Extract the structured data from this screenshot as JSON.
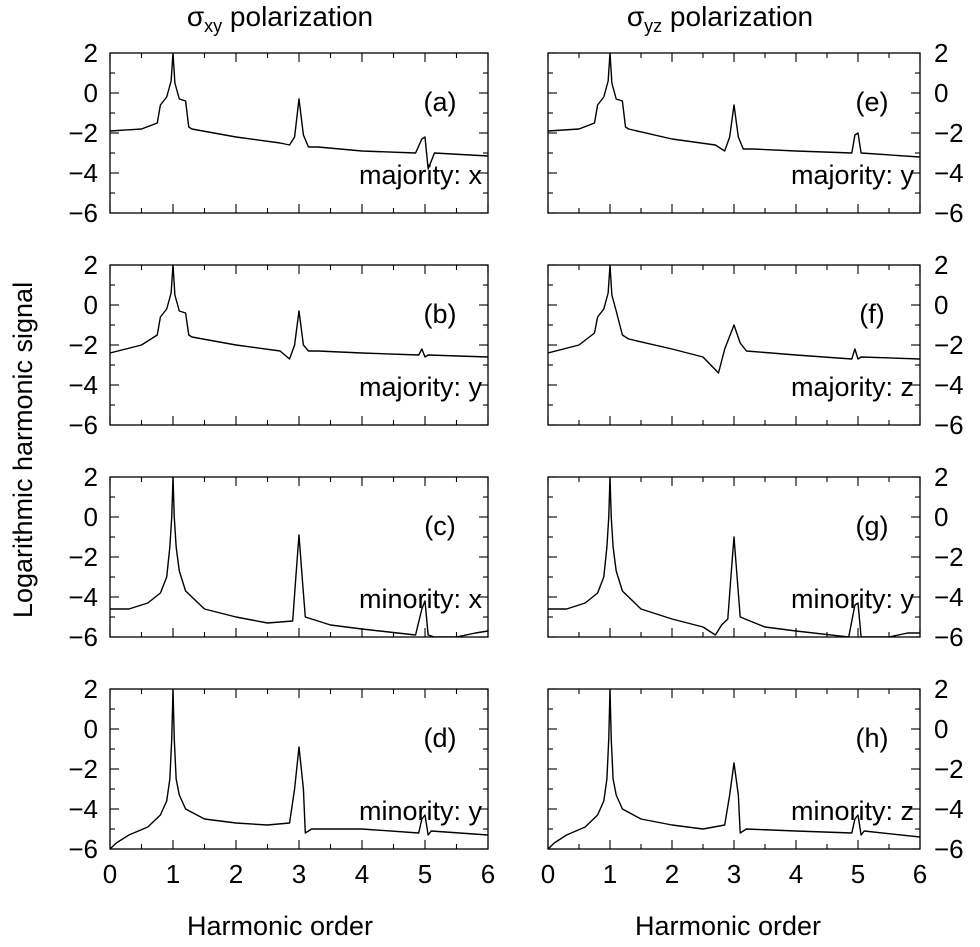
{
  "figure": {
    "col_titles": [
      {
        "symbol": "σ",
        "sub": "xy",
        "rest": " polarization"
      },
      {
        "symbol": "σ",
        "sub": "yz",
        "rest": " polarization"
      }
    ],
    "ylabel": "Logarithmic harmonic signal",
    "xlabel": "Harmonic order",
    "x_ticks": [
      "0",
      "1",
      "2",
      "3",
      "4",
      "5",
      "6"
    ],
    "y_ticks": [
      "2",
      "0",
      "−2",
      "−4",
      "−6"
    ]
  },
  "chart_data": [
    {
      "type": "line",
      "panel": "(a)",
      "caption": "majority: x",
      "xlim": [
        0,
        6
      ],
      "ylim": [
        -6,
        2
      ],
      "series": [
        {
          "x": [
            0,
            0.5,
            0.75,
            0.8,
            0.9,
            0.97,
            1.0,
            1.03,
            1.1,
            1.2,
            1.25,
            1.3,
            2,
            2.7,
            2.85,
            2.93,
            3.0,
            3.07,
            3.15,
            3.3,
            4,
            4.85,
            4.95,
            5.0,
            5.05,
            5.15,
            6
          ],
          "y": [
            -1.9,
            -1.8,
            -1.5,
            -0.6,
            -0.2,
            0.6,
            2.0,
            0.5,
            -0.3,
            -0.4,
            -1.7,
            -1.8,
            -2.2,
            -2.5,
            -2.6,
            -2.2,
            -0.3,
            -2.1,
            -2.7,
            -2.7,
            -2.9,
            -3.0,
            -2.3,
            -2.2,
            -3.8,
            -3.0,
            -3.15
          ]
        }
      ]
    },
    {
      "type": "line",
      "panel": "(b)",
      "caption": "majority: y",
      "xlim": [
        0,
        6
      ],
      "ylim": [
        -6,
        2
      ],
      "series": [
        {
          "x": [
            0,
            0.5,
            0.75,
            0.8,
            0.9,
            0.97,
            1.0,
            1.03,
            1.1,
            1.2,
            1.25,
            1.3,
            2,
            2.7,
            2.85,
            2.93,
            3.0,
            3.07,
            3.15,
            3.3,
            4,
            4.9,
            4.95,
            5.0,
            5.05,
            6
          ],
          "y": [
            -2.4,
            -2.0,
            -1.5,
            -0.6,
            -0.2,
            0.6,
            2.0,
            0.5,
            -0.3,
            -0.4,
            -1.5,
            -1.6,
            -2.0,
            -2.3,
            -2.7,
            -2.0,
            -0.3,
            -2.0,
            -2.3,
            -2.3,
            -2.4,
            -2.5,
            -2.2,
            -2.6,
            -2.5,
            -2.6
          ]
        }
      ]
    },
    {
      "type": "line",
      "panel": "(c)",
      "caption": "minority: x",
      "xlim": [
        0,
        6
      ],
      "ylim": [
        -6,
        2
      ],
      "series": [
        {
          "x": [
            0,
            0.3,
            0.6,
            0.8,
            0.9,
            0.95,
            0.98,
            1.0,
            1.02,
            1.05,
            1.1,
            1.2,
            1.5,
            2.0,
            2.5,
            2.9,
            2.95,
            3.0,
            3.05,
            3.1,
            3.5,
            4.0,
            4.85,
            4.95,
            5.0,
            5.05,
            5.15,
            5.5,
            5.8,
            6
          ],
          "y": [
            -4.6,
            -4.6,
            -4.3,
            -3.8,
            -3.0,
            -1.5,
            0.0,
            2.0,
            0.0,
            -1.5,
            -2.7,
            -3.7,
            -4.6,
            -5.0,
            -5.3,
            -5.2,
            -3.0,
            -0.9,
            -3.0,
            -5.0,
            -5.4,
            -5.6,
            -5.9,
            -4.6,
            -4.2,
            -5.9,
            -6.0,
            -6.0,
            -5.8,
            -5.7
          ]
        }
      ]
    },
    {
      "type": "line",
      "panel": "(d)",
      "caption": "minority: y",
      "xlim": [
        0,
        6
      ],
      "ylim": [
        -6,
        2
      ],
      "series": [
        {
          "x": [
            0,
            0.1,
            0.3,
            0.6,
            0.8,
            0.9,
            0.95,
            0.98,
            1.0,
            1.02,
            1.05,
            1.1,
            1.2,
            1.5,
            2.0,
            2.5,
            2.85,
            2.93,
            3.0,
            3.07,
            3.1,
            3.2,
            4.0,
            4.9,
            4.95,
            5.0,
            5.05,
            5.1,
            6
          ],
          "y": [
            -6.0,
            -5.7,
            -5.3,
            -4.9,
            -4.3,
            -3.6,
            -2.5,
            -0.5,
            2.0,
            -0.5,
            -2.5,
            -3.3,
            -4.0,
            -4.5,
            -4.7,
            -4.8,
            -4.7,
            -3.0,
            -0.9,
            -3.0,
            -5.2,
            -5.0,
            -5.0,
            -5.2,
            -4.5,
            -4.3,
            -5.3,
            -5.1,
            -5.3
          ]
        }
      ]
    },
    {
      "type": "line",
      "panel": "(e)",
      "caption": "majority: y",
      "xlim": [
        0,
        6
      ],
      "ylim": [
        -6,
        2
      ],
      "series": [
        {
          "x": [
            0,
            0.5,
            0.75,
            0.8,
            0.9,
            0.97,
            1.0,
            1.03,
            1.1,
            1.2,
            1.25,
            1.3,
            2,
            2.7,
            2.85,
            2.93,
            3.0,
            3.07,
            3.15,
            3.3,
            4,
            4.9,
            4.95,
            5.0,
            5.05,
            6
          ],
          "y": [
            -1.9,
            -1.8,
            -1.5,
            -0.6,
            -0.2,
            0.6,
            2.0,
            0.5,
            -0.3,
            -0.4,
            -1.7,
            -1.8,
            -2.3,
            -2.6,
            -2.9,
            -2.2,
            -0.6,
            -2.2,
            -2.8,
            -2.8,
            -2.9,
            -3.0,
            -2.1,
            -2.0,
            -3.0,
            -3.2
          ]
        }
      ]
    },
    {
      "type": "line",
      "panel": "(f)",
      "caption": "majority: z",
      "xlim": [
        0,
        6
      ],
      "ylim": [
        -6,
        2
      ],
      "series": [
        {
          "x": [
            0,
            0.5,
            0.75,
            0.8,
            0.9,
            0.97,
            1.0,
            1.03,
            1.1,
            1.2,
            1.3,
            2,
            2.5,
            2.75,
            2.85,
            3.0,
            3.1,
            3.2,
            4,
            4.9,
            4.95,
            5.0,
            5.05,
            6
          ],
          "y": [
            -2.4,
            -2.0,
            -1.4,
            -0.6,
            -0.2,
            0.6,
            2.0,
            0.5,
            -0.3,
            -1.5,
            -1.7,
            -2.2,
            -2.6,
            -3.4,
            -2.2,
            -1.0,
            -1.9,
            -2.3,
            -2.5,
            -2.7,
            -2.2,
            -2.7,
            -2.6,
            -2.7
          ]
        }
      ]
    },
    {
      "type": "line",
      "panel": "(g)",
      "caption": "minority: y",
      "xlim": [
        0,
        6
      ],
      "ylim": [
        -6,
        2
      ],
      "series": [
        {
          "x": [
            0,
            0.3,
            0.6,
            0.8,
            0.9,
            0.95,
            0.98,
            1.0,
            1.02,
            1.05,
            1.1,
            1.2,
            1.5,
            2.0,
            2.5,
            2.7,
            2.8,
            2.9,
            2.95,
            3.0,
            3.05,
            3.1,
            3.5,
            4.0,
            4.85,
            4.95,
            5.0,
            5.05,
            5.15,
            5.5,
            5.8,
            6
          ],
          "y": [
            -4.6,
            -4.6,
            -4.3,
            -3.8,
            -3.0,
            -1.5,
            0.0,
            2.0,
            0.0,
            -1.5,
            -2.7,
            -3.7,
            -4.6,
            -5.1,
            -5.5,
            -5.9,
            -5.4,
            -5.1,
            -3.0,
            -1.0,
            -3.0,
            -5.0,
            -5.5,
            -5.7,
            -6.0,
            -4.4,
            -4.3,
            -6.0,
            -6.0,
            -6.0,
            -5.8,
            -5.8
          ]
        }
      ]
    },
    {
      "type": "line",
      "panel": "(h)",
      "caption": "minority: z",
      "xlim": [
        0,
        6
      ],
      "ylim": [
        -6,
        2
      ],
      "series": [
        {
          "x": [
            0,
            0.1,
            0.3,
            0.6,
            0.8,
            0.9,
            0.95,
            0.98,
            1.0,
            1.02,
            1.05,
            1.1,
            1.2,
            1.5,
            2.0,
            2.5,
            2.85,
            2.93,
            3.0,
            3.07,
            3.1,
            3.2,
            4.0,
            4.9,
            4.95,
            5.0,
            5.05,
            5.1,
            6
          ],
          "y": [
            -6.0,
            -5.7,
            -5.3,
            -4.9,
            -4.3,
            -3.6,
            -2.5,
            -0.5,
            2.0,
            -0.5,
            -2.5,
            -3.3,
            -4.0,
            -4.5,
            -4.8,
            -5.0,
            -4.8,
            -3.3,
            -1.7,
            -3.3,
            -5.2,
            -5.0,
            -5.1,
            -5.2,
            -4.5,
            -4.3,
            -5.3,
            -5.1,
            -5.4
          ]
        }
      ]
    }
  ]
}
